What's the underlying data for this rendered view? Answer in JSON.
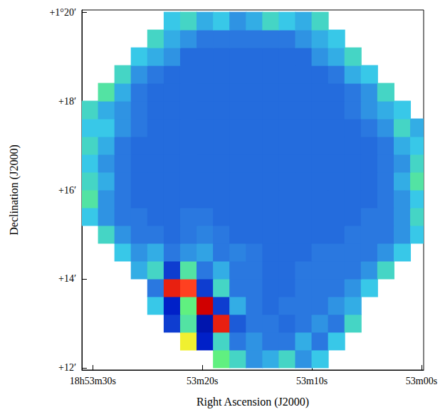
{
  "chart_data": {
    "type": "heatmap",
    "xlabel": "Right Ascension (J2000)",
    "ylabel": "Declination (J2000)",
    "xlim": [
      31,
      -0.2
    ],
    "xticks": [
      {
        "value": 30,
        "label": "18h53m30s"
      },
      {
        "value": 20,
        "label": "53m20s"
      },
      {
        "value": 10,
        "label": "53m10s"
      },
      {
        "value": 0,
        "label": "53m00s"
      }
    ],
    "ylim": [
      11.95,
      20.05
    ],
    "yticks": [
      {
        "value": 12,
        "label": "+12′"
      },
      {
        "value": 14,
        "label": "+14′"
      },
      {
        "value": 16,
        "label": "+16′"
      },
      {
        "value": 18,
        "label": "+18′"
      },
      {
        "value": 20,
        "label": "+1°20′"
      }
    ],
    "grid": false,
    "zlim": [
      0,
      1
    ],
    "cells": {
      "x": [
        30.25,
        28.75,
        27.25,
        25.75,
        24.25,
        22.75,
        21.25,
        19.75,
        18.25,
        16.75,
        15.25,
        13.75,
        12.25,
        10.75,
        9.25,
        7.75,
        6.25,
        4.75,
        3.25,
        1.75,
        0.25
      ],
      "y": [
        12.2,
        12.6,
        13.0,
        13.4,
        13.8,
        14.2,
        14.6,
        15.0,
        15.4,
        15.8,
        16.2,
        16.6,
        17.0,
        17.4,
        17.8,
        18.2,
        18.6,
        19.0,
        19.4,
        19.8
      ],
      "values": [
        [
          null,
          null,
          null,
          null,
          null,
          null,
          null,
          null,
          0.6,
          0.5,
          0.35,
          0.4,
          0.5,
          0.35,
          0.45,
          null,
          null,
          null,
          null,
          null,
          null
        ],
        [
          null,
          null,
          null,
          null,
          null,
          null,
          0.75,
          0.15,
          0.5,
          0.3,
          0.35,
          0.3,
          0.3,
          0.4,
          0.3,
          0.45,
          null,
          null,
          null,
          null,
          null
        ],
        [
          null,
          null,
          null,
          null,
          null,
          0.2,
          0.55,
          0.1,
          0.95,
          0.25,
          0.3,
          0.3,
          0.28,
          0.3,
          0.35,
          0.3,
          0.5,
          null,
          null,
          null,
          null
        ],
        [
          null,
          null,
          null,
          null,
          0.45,
          0.15,
          0.6,
          1,
          0.2,
          0.4,
          0.3,
          0.28,
          0.3,
          0.3,
          0.3,
          0.35,
          0.4,
          null,
          null,
          null,
          null
        ],
        [
          null,
          null,
          null,
          null,
          0.3,
          0.95,
          0.9,
          0.2,
          0.5,
          0.3,
          0.3,
          0.28,
          0.28,
          0.3,
          0.3,
          0.3,
          0.35,
          0.45,
          null,
          null,
          null
        ],
        [
          null,
          null,
          null,
          0.4,
          0.5,
          0.2,
          0.55,
          0.3,
          0.4,
          0.3,
          0.3,
          0.28,
          0.28,
          0.3,
          0.3,
          0.3,
          0.3,
          0.35,
          0.5,
          null,
          null
        ],
        [
          null,
          null,
          0.45,
          0.35,
          0.4,
          0.3,
          0.35,
          0.38,
          0.3,
          0.32,
          0.3,
          0.28,
          0.28,
          0.28,
          0.3,
          0.3,
          0.3,
          0.3,
          0.35,
          0.45,
          null
        ],
        [
          null,
          0.5,
          0.35,
          0.3,
          0.3,
          0.28,
          0.3,
          0.32,
          0.3,
          0.28,
          0.28,
          0.28,
          0.28,
          0.28,
          0.28,
          0.28,
          0.3,
          0.3,
          0.3,
          0.35,
          0.45
        ],
        [
          0.45,
          0.35,
          0.3,
          0.3,
          0.28,
          0.28,
          0.3,
          0.3,
          0.28,
          0.28,
          0.28,
          0.28,
          0.28,
          0.28,
          0.28,
          0.28,
          0.28,
          0.3,
          0.3,
          0.35,
          0.5
        ],
        [
          0.55,
          0.35,
          0.3,
          0.28,
          0.28,
          0.28,
          0.28,
          0.28,
          0.28,
          0.28,
          0.28,
          0.28,
          0.28,
          0.28,
          0.28,
          0.28,
          0.28,
          0.28,
          0.3,
          0.35,
          0.45
        ],
        [
          0.5,
          0.4,
          0.3,
          0.28,
          0.28,
          0.28,
          0.28,
          0.28,
          0.28,
          0.28,
          0.28,
          0.28,
          0.28,
          0.28,
          0.28,
          0.28,
          0.28,
          0.28,
          0.3,
          0.4,
          0.55
        ],
        [
          0.45,
          0.35,
          0.3,
          0.28,
          0.28,
          0.28,
          0.28,
          0.28,
          0.28,
          0.28,
          0.28,
          0.28,
          0.28,
          0.28,
          0.28,
          0.28,
          0.28,
          0.28,
          0.3,
          0.35,
          0.5
        ],
        [
          0.5,
          0.4,
          0.3,
          0.28,
          0.28,
          0.28,
          0.28,
          0.28,
          0.28,
          0.28,
          0.28,
          0.28,
          0.28,
          0.28,
          0.28,
          0.28,
          0.28,
          0.28,
          0.3,
          0.4,
          0.45
        ],
        [
          0.45,
          0.45,
          0.35,
          0.3,
          0.28,
          0.28,
          0.28,
          0.28,
          0.28,
          0.28,
          0.28,
          0.28,
          0.28,
          0.28,
          0.28,
          0.28,
          0.28,
          0.3,
          0.35,
          0.5,
          0.4
        ],
        [
          0.5,
          0.4,
          0.35,
          0.3,
          0.28,
          0.28,
          0.28,
          0.28,
          0.28,
          0.28,
          0.28,
          0.28,
          0.28,
          0.28,
          0.28,
          0.28,
          0.3,
          0.35,
          0.4,
          0.45,
          null
        ],
        [
          null,
          0.55,
          0.4,
          0.3,
          0.28,
          0.28,
          0.28,
          0.28,
          0.28,
          0.28,
          0.28,
          0.28,
          0.28,
          0.28,
          0.28,
          0.28,
          0.3,
          0.35,
          0.5,
          null,
          null
        ],
        [
          null,
          null,
          0.5,
          0.35,
          0.3,
          0.28,
          0.28,
          0.28,
          0.28,
          0.28,
          0.28,
          0.28,
          0.28,
          0.28,
          0.28,
          0.3,
          0.4,
          0.45,
          null,
          null,
          null
        ],
        [
          null,
          null,
          null,
          0.45,
          0.4,
          0.35,
          0.28,
          0.28,
          0.28,
          0.28,
          0.28,
          0.28,
          0.28,
          0.28,
          0.35,
          0.4,
          0.5,
          null,
          null,
          null,
          null
        ],
        [
          null,
          null,
          null,
          null,
          0.5,
          0.4,
          0.35,
          0.3,
          0.3,
          0.3,
          0.3,
          0.3,
          0.3,
          0.35,
          0.4,
          0.45,
          null,
          null,
          null,
          null,
          null
        ],
        [
          null,
          null,
          null,
          null,
          null,
          0.45,
          0.5,
          0.4,
          0.45,
          0.35,
          0.4,
          0.5,
          0.45,
          0.4,
          0.5,
          null,
          null,
          null,
          null,
          null,
          null
        ]
      ]
    }
  }
}
